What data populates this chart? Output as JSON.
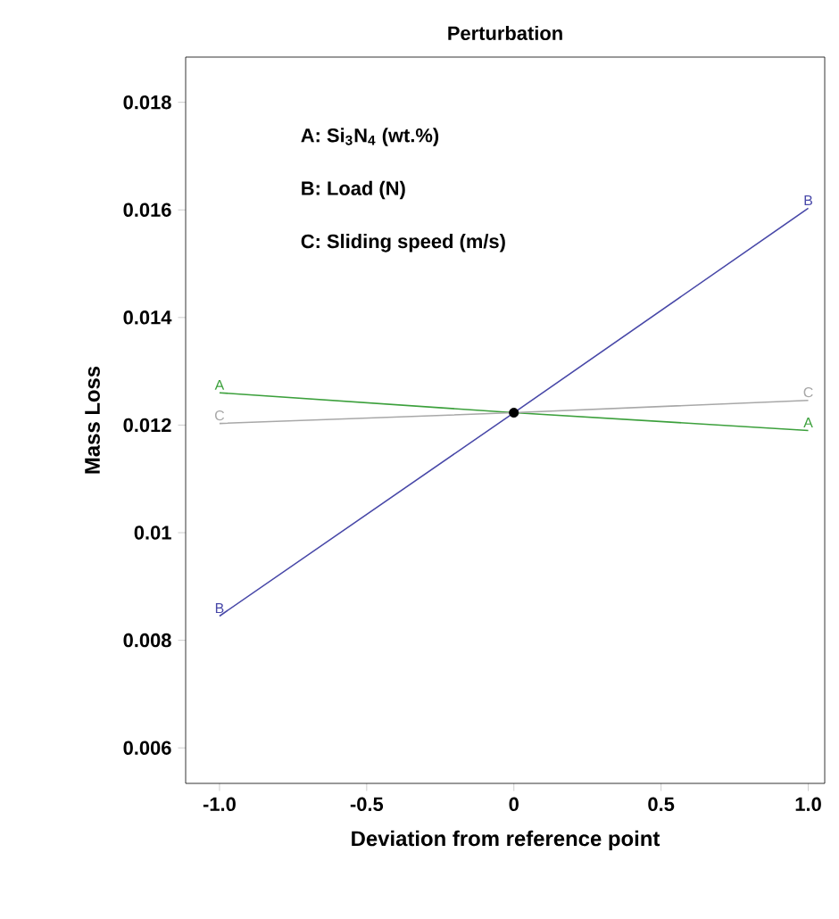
{
  "chart_data": {
    "type": "line",
    "title": "Perturbation",
    "xlabel": "Deviation from reference point",
    "ylabel": "Mass Loss",
    "annotations": [
      "A: Si$_{3}$N$_{4}$ (wt.%)",
      "B: Load (N)",
      "C: Sliding speed  (m/s)"
    ],
    "x": [
      -1,
      0,
      1
    ],
    "series": [
      {
        "name": "A",
        "color": "#3ca03c",
        "values": [
          0.0126,
          0.01223,
          0.0119
        ]
      },
      {
        "name": "B",
        "color": "#4848a8",
        "values": [
          0.00845,
          0.01223,
          0.01603
        ]
      },
      {
        "name": "C",
        "color": "#a8a8a8",
        "values": [
          0.01203,
          0.01223,
          0.01246
        ]
      },
      {
        "type": "scatter",
        "color": "#000000",
        "x": [
          0
        ],
        "values": [
          0.01223
        ]
      }
    ],
    "xlim": [
      -1.115,
      1.056
    ],
    "ylim": [
      0.00534,
      0.01884
    ],
    "xticks": [
      {
        "value": -1,
        "label": "-1.0"
      },
      {
        "value": -0.5,
        "label": "-0.5"
      },
      0,
      0.5,
      {
        "value": 1,
        "label": "1.0"
      }
    ],
    "yticks": [
      0.006,
      0.008,
      0.01,
      0.012,
      0.014,
      0.016,
      0.018
    ],
    "grid": false,
    "legend": false,
    "line_style": "solid"
  }
}
